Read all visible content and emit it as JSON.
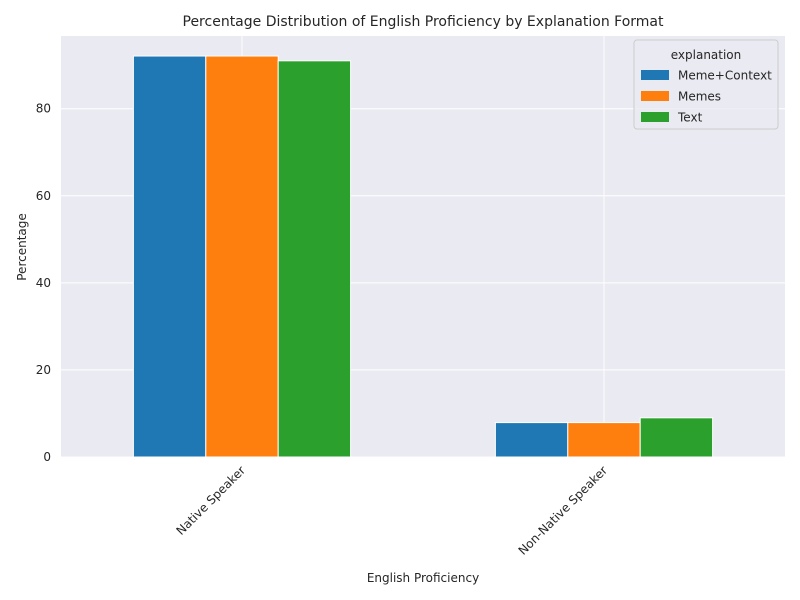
{
  "chart_data": {
    "type": "bar",
    "title": "Percentage Distribution of English Proficiency by Explanation Format",
    "xlabel": "English Proficiency",
    "ylabel": "Percentage",
    "categories": [
      "Native Speaker",
      "Non-Native Speaker"
    ],
    "series": [
      {
        "name": "Meme+Context",
        "values": [
          92.1,
          7.9
        ],
        "color": "#1f77b4"
      },
      {
        "name": "Memes",
        "values": [
          92.1,
          7.9
        ],
        "color": "#ff7f0e"
      },
      {
        "name": "Text",
        "values": [
          91.0,
          9.0
        ],
        "color": "#2ca02c"
      }
    ],
    "ylim": [
      0,
      96.7
    ],
    "yticks": [
      0,
      20,
      40,
      60,
      80
    ],
    "grid": true,
    "legend": {
      "title": "explanation",
      "position": "top-right"
    }
  }
}
